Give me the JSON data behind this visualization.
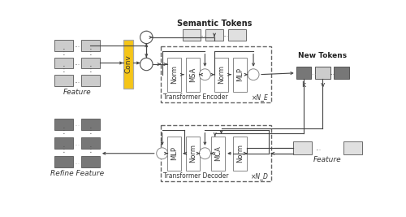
{
  "bg": "#ffffff",
  "lg": "#cccccc",
  "lg2": "#e0e0e0",
  "dg": "#777777",
  "yellow": "#f5c518",
  "ec": "#555555",
  "ec_light": "#888888",
  "enc_label": "Transformer Encoder",
  "dec_label": "Transformer Decoder",
  "ne_label": "×N_E",
  "nd_label": "×N_D",
  "sem_label": "Semantic Tokens",
  "new_label": "New Tokens",
  "feat_label": "Feature",
  "ref_label": "Refine Feature",
  "enc_blocks": [
    "Norm",
    "MSA",
    "Norm",
    "MLP"
  ],
  "dec_blocks": [
    "Norm",
    "MCA",
    "Norm",
    "MLP"
  ]
}
